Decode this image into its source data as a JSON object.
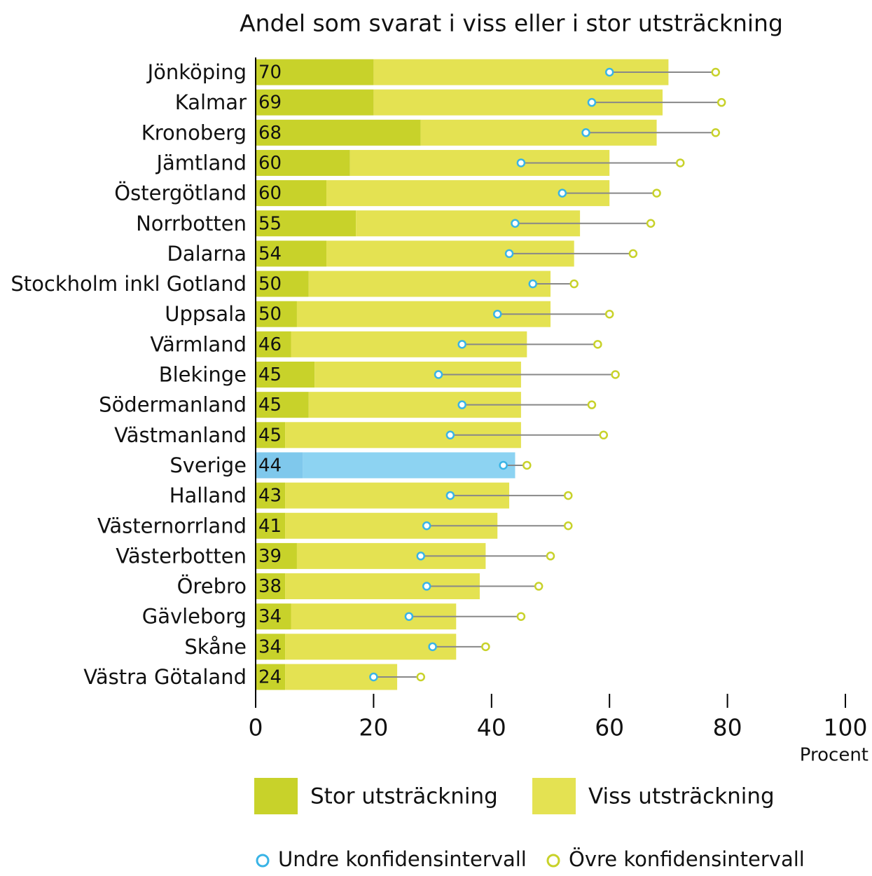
{
  "chart_data": {
    "type": "bar",
    "orientation": "horizontal",
    "stacked": true,
    "title": "Andel som svarat i viss eller i stor utsträckning",
    "xlabel": "Procent",
    "categories": [
      "Jönköping",
      "Kalmar",
      "Kronoberg",
      "Jämtland",
      "Östergötland",
      "Norrbotten",
      "Dalarna",
      "Stockholm inkl Gotland",
      "Uppsala",
      "Värmland",
      "Blekinge",
      "Södermanland",
      "Västmanland",
      "Sverige",
      "Halland",
      "Västernorrland",
      "Västerbotten",
      "Örebro",
      "Gävleborg",
      "Skåne",
      "Västra Götaland"
    ],
    "series": [
      {
        "name": "Stor utsträckning",
        "color": "#c8d22a",
        "values": [
          20,
          20,
          28,
          16,
          12,
          17,
          12,
          9,
          7,
          6,
          10,
          9,
          5,
          8,
          5,
          5,
          7,
          5,
          6,
          5,
          5
        ]
      },
      {
        "name": "Viss utsträckning",
        "color": "#e4e252",
        "values": [
          50,
          49,
          40,
          44,
          48,
          38,
          42,
          41,
          43,
          40,
          35,
          36,
          40,
          36,
          38,
          36,
          32,
          33,
          28,
          29,
          19
        ]
      }
    ],
    "totals": [
      70,
      69,
      68,
      60,
      60,
      55,
      54,
      50,
      50,
      46,
      45,
      45,
      45,
      44,
      43,
      41,
      39,
      38,
      34,
      34,
      24
    ],
    "highlight": "Sverige",
    "highlight_colors": [
      "#7fc8ec",
      "#8dd3f2"
    ],
    "ci": [
      {
        "name": "Undre konfidensintervall",
        "color": "#39b4e6",
        "values": [
          60,
          57,
          56,
          45,
          52,
          44,
          43,
          47,
          41,
          35,
          31,
          35,
          33,
          42,
          33,
          29,
          28,
          29,
          26,
          30,
          20
        ]
      },
      {
        "name": "Övre konfidensintervall",
        "color": "#c8d22a",
        "values": [
          78,
          79,
          78,
          72,
          68,
          67,
          64,
          54,
          60,
          58,
          61,
          57,
          59,
          46,
          53,
          53,
          50,
          48,
          45,
          39,
          28
        ]
      }
    ],
    "xlim": [
      0,
      100
    ],
    "xticks": [
      0,
      20,
      40,
      60,
      80,
      100
    ]
  }
}
